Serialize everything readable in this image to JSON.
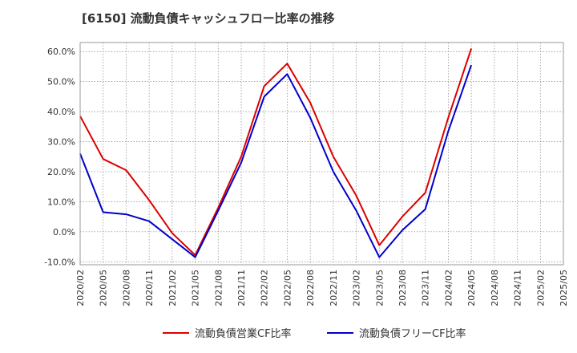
{
  "chart_data": {
    "type": "line",
    "title": "[6150]  流動負債キャッシュフロー比率の推移",
    "xlabel": "",
    "ylabel": "",
    "categories": [
      "2020/02",
      "2020/05",
      "2020/08",
      "2020/11",
      "2021/02",
      "2021/05",
      "2021/08",
      "2021/11",
      "2022/02",
      "2022/05",
      "2022/08",
      "2022/11",
      "2023/02",
      "2023/05",
      "2023/08",
      "2023/11",
      "2024/02",
      "2024/05",
      "2024/08",
      "2024/11",
      "2025/02",
      "2025/05"
    ],
    "y_tick_labels": [
      "60.0%",
      "50.0%",
      "40.0%",
      "30.0%",
      "20.0%",
      "10.0%",
      "0.0%",
      "-10.0%"
    ],
    "y_ticks": [
      60,
      50,
      40,
      30,
      20,
      10,
      0,
      -10
    ],
    "ylim": [
      -11,
      63
    ],
    "grid": true,
    "legend_position": "bottom",
    "series": [
      {
        "name": "流動負債営業CF比率",
        "color": "#dd0000",
        "values": [
          38.5,
          24.2,
          20.5,
          10.5,
          -0.5,
          -7.8,
          8.0,
          25.0,
          48.5,
          56.0,
          43.0,
          25.0,
          12.0,
          -4.5,
          5.0,
          13.0,
          38.0,
          61.0,
          null,
          null,
          null,
          null
        ]
      },
      {
        "name": "流動負債フリーCF比率",
        "color": "#0000cc",
        "values": [
          26.0,
          6.5,
          5.8,
          3.5,
          -2.5,
          -8.5,
          7.0,
          23.0,
          45.0,
          52.5,
          38.0,
          20.0,
          7.0,
          -8.5,
          0.5,
          7.5,
          33.5,
          55.5,
          null,
          null,
          null,
          null
        ]
      }
    ]
  }
}
